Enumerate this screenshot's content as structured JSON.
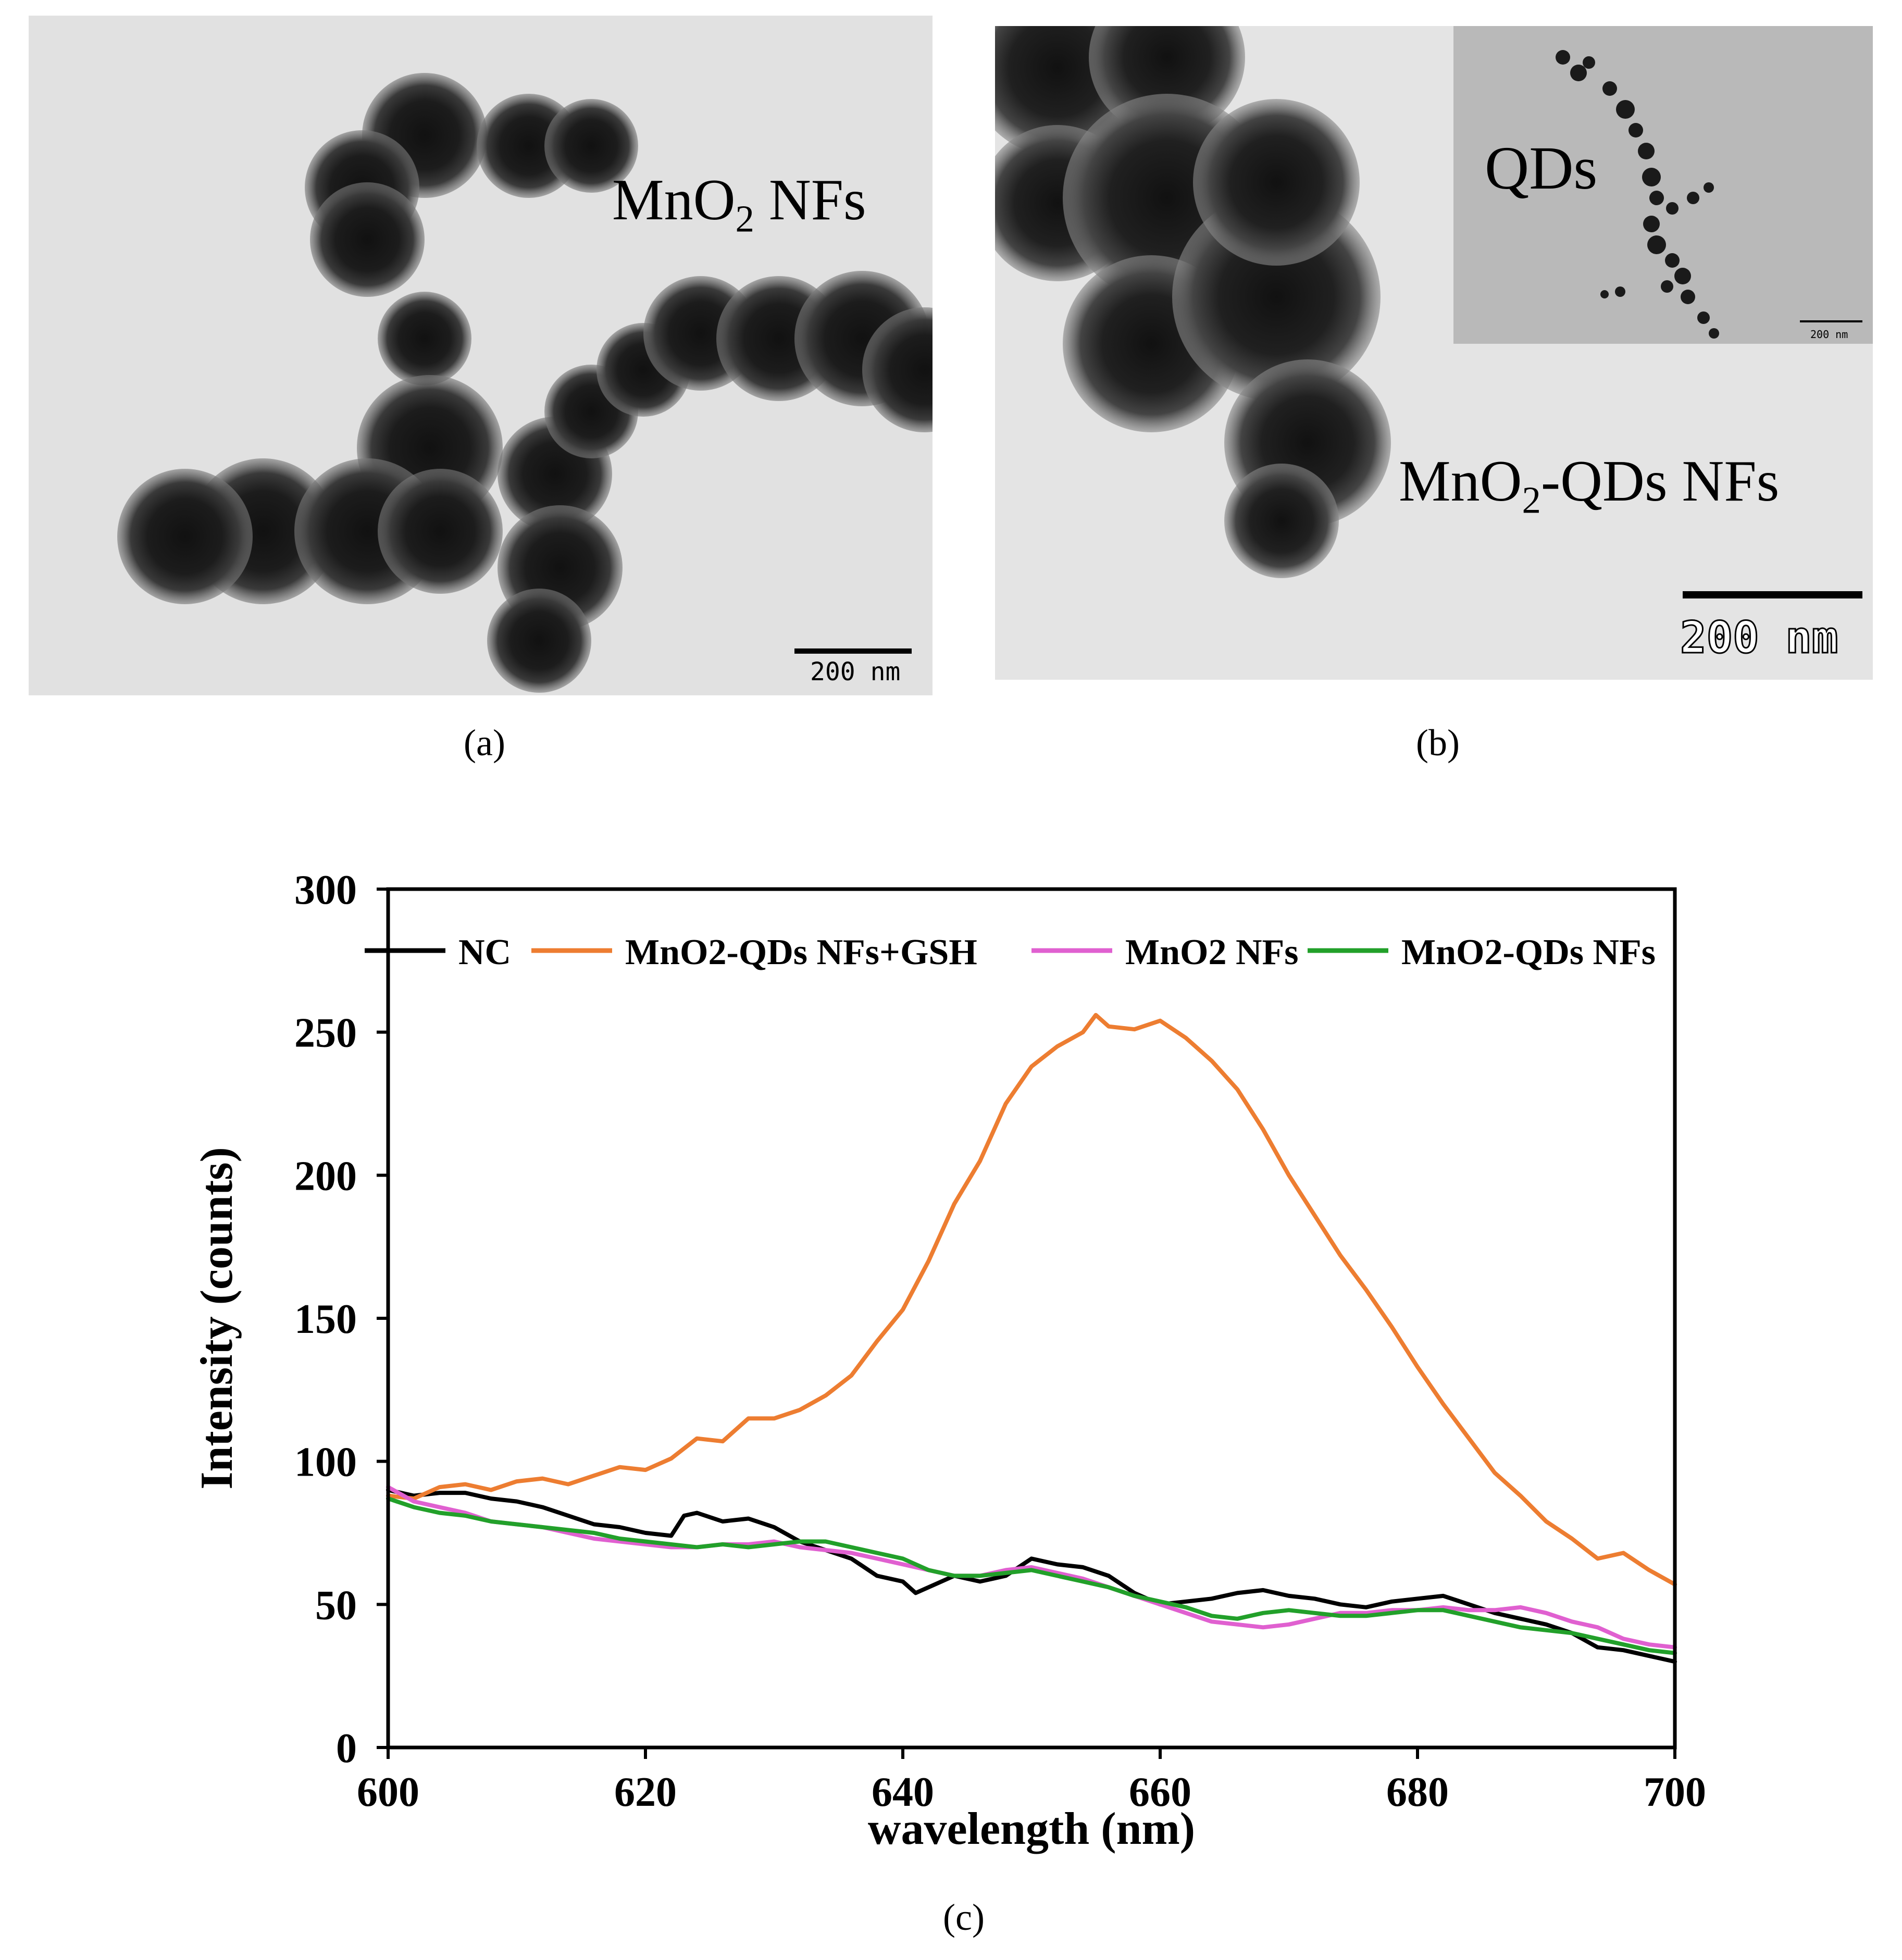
{
  "panels": {
    "a": {
      "caption": "(a)",
      "label_prefix": "MnO",
      "label_sub": "2",
      "label_suffix": " NFs",
      "scale_label": "200 nm"
    },
    "b": {
      "caption": "(b)",
      "label_prefix": "MnO",
      "label_sub": "2",
      "label_suffix": "-QDs NFs",
      "inset_label": "QDs",
      "inset_scale_label": "200 nm",
      "scale_label": "200 nm"
    },
    "c": {
      "caption": "(c)"
    }
  },
  "chart_data": {
    "type": "line",
    "title": "",
    "xlabel": "wavelength (nm)",
    "ylabel": "Intensity (counts)",
    "xlim": [
      600,
      700
    ],
    "ylim": [
      0,
      300
    ],
    "xticks": [
      600,
      620,
      640,
      660,
      680,
      700
    ],
    "yticks": [
      0,
      50,
      100,
      150,
      200,
      250,
      300
    ],
    "legend_position": "top",
    "grid": false,
    "series": [
      {
        "name": "NC",
        "color": "#000000",
        "x": [
          600,
          602,
          604,
          606,
          608,
          610,
          612,
          614,
          616,
          618,
          620,
          622,
          623,
          624,
          626,
          628,
          630,
          632,
          634,
          636,
          638,
          640,
          641,
          642,
          644,
          646,
          648,
          650,
          652,
          654,
          656,
          658,
          660,
          662,
          664,
          666,
          668,
          670,
          672,
          674,
          676,
          678,
          680,
          682,
          684,
          686,
          688,
          690,
          692,
          694,
          696,
          698,
          700
        ],
        "y": [
          90,
          88,
          89,
          89,
          87,
          86,
          84,
          81,
          78,
          77,
          75,
          74,
          81,
          82,
          79,
          80,
          77,
          72,
          69,
          66,
          60,
          58,
          54,
          56,
          60,
          58,
          60,
          66,
          64,
          63,
          60,
          54,
          50,
          51,
          52,
          54,
          55,
          53,
          52,
          50,
          49,
          51,
          52,
          53,
          50,
          47,
          45,
          43,
          40,
          35,
          34,
          32,
          30
        ]
      },
      {
        "name": "MnO2-QDs NFs+GSH",
        "color": "#ED7D31",
        "x": [
          600,
          602,
          604,
          606,
          608,
          610,
          612,
          614,
          616,
          618,
          620,
          622,
          624,
          626,
          628,
          630,
          632,
          634,
          636,
          638,
          640,
          642,
          644,
          646,
          648,
          650,
          652,
          654,
          655,
          656,
          658,
          660,
          662,
          664,
          666,
          668,
          670,
          672,
          674,
          676,
          678,
          680,
          682,
          684,
          686,
          688,
          690,
          692,
          694,
          696,
          698,
          700
        ],
        "y": [
          88,
          87,
          91,
          92,
          90,
          93,
          94,
          92,
          95,
          98,
          97,
          101,
          108,
          107,
          115,
          115,
          118,
          123,
          130,
          142,
          153,
          170,
          190,
          205,
          225,
          238,
          245,
          250,
          256,
          252,
          251,
          254,
          248,
          240,
          230,
          216,
          200,
          186,
          172,
          160,
          147,
          133,
          120,
          108,
          96,
          88,
          79,
          73,
          66,
          68,
          62,
          57
        ]
      },
      {
        "name": "MnO2 NFs",
        "color": "#E060D0",
        "x": [
          600,
          602,
          604,
          606,
          608,
          610,
          612,
          614,
          616,
          618,
          620,
          622,
          624,
          626,
          628,
          630,
          632,
          634,
          636,
          638,
          640,
          642,
          644,
          646,
          648,
          650,
          652,
          654,
          656,
          658,
          660,
          662,
          664,
          666,
          668,
          670,
          672,
          674,
          676,
          678,
          680,
          682,
          684,
          686,
          688,
          690,
          692,
          694,
          696,
          698,
          700
        ],
        "y": [
          91,
          86,
          84,
          82,
          79,
          78,
          77,
          75,
          73,
          72,
          71,
          70,
          70,
          71,
          71,
          72,
          70,
          69,
          68,
          66,
          64,
          62,
          60,
          60,
          62,
          63,
          61,
          59,
          56,
          53,
          50,
          47,
          44,
          43,
          42,
          43,
          45,
          47,
          47,
          48,
          48,
          49,
          48,
          48,
          49,
          47,
          44,
          42,
          38,
          36,
          35
        ]
      },
      {
        "name": "MnO2-QDs NFs",
        "color": "#22A02A",
        "x": [
          600,
          602,
          604,
          606,
          608,
          610,
          612,
          614,
          616,
          618,
          620,
          622,
          624,
          626,
          628,
          630,
          632,
          634,
          636,
          638,
          640,
          642,
          644,
          646,
          648,
          650,
          652,
          654,
          656,
          658,
          660,
          662,
          664,
          666,
          668,
          670,
          672,
          674,
          676,
          678,
          680,
          682,
          684,
          686,
          688,
          690,
          692,
          694,
          696,
          698,
          700
        ],
        "y": [
          87,
          84,
          82,
          81,
          79,
          78,
          77,
          76,
          75,
          73,
          72,
          71,
          70,
          71,
          70,
          71,
          72,
          72,
          70,
          68,
          66,
          62,
          60,
          60,
          61,
          62,
          60,
          58,
          56,
          53,
          51,
          49,
          46,
          45,
          47,
          48,
          47,
          46,
          46,
          47,
          48,
          48,
          46,
          44,
          42,
          41,
          40,
          38,
          36,
          34,
          33
        ]
      }
    ]
  }
}
